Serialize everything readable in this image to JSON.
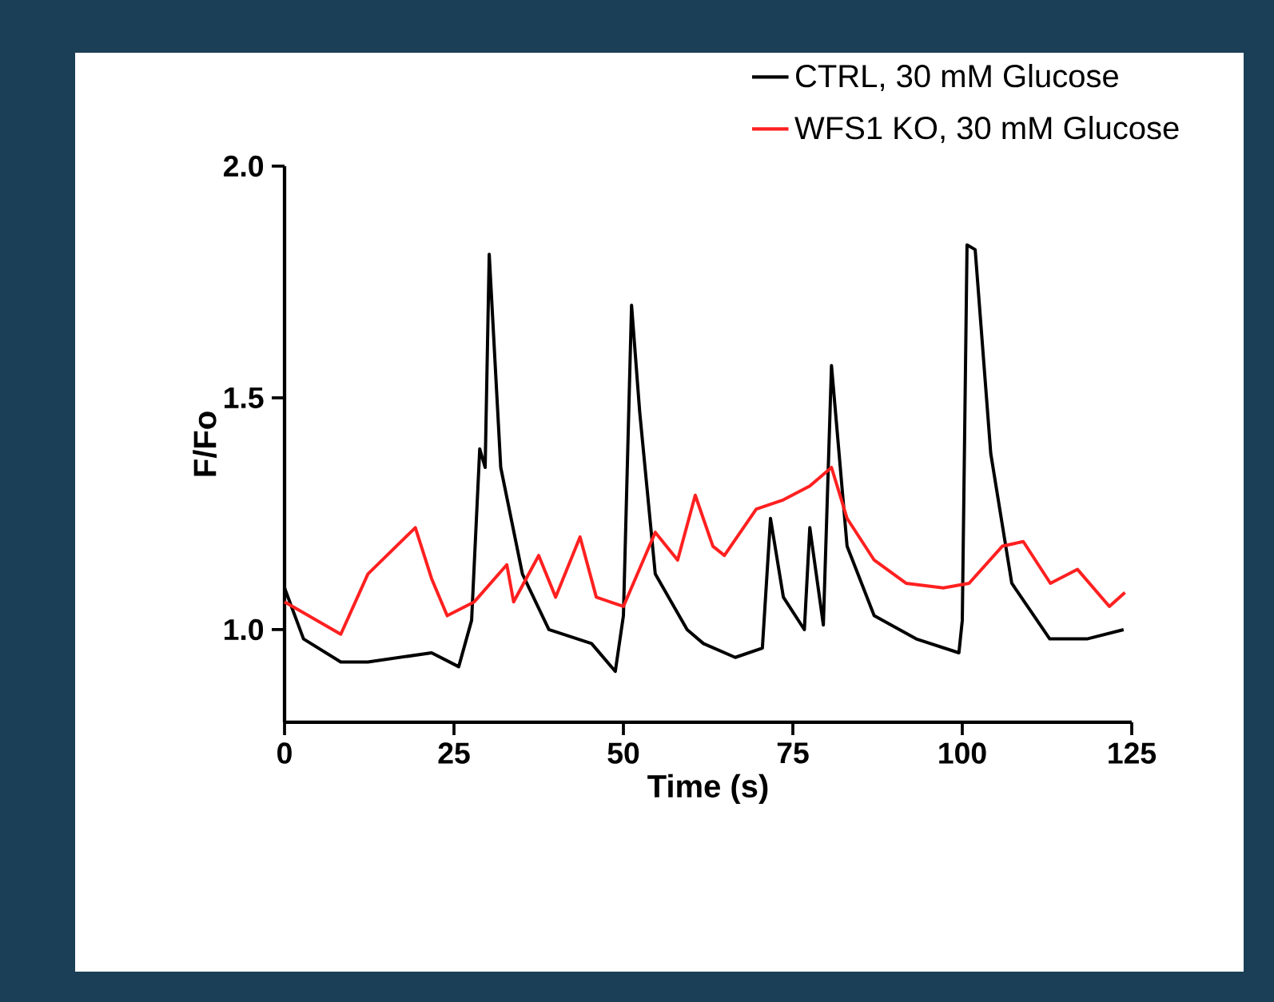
{
  "chart_data": {
    "type": "line",
    "xlabel": "Time (s)",
    "ylabel": "F/Fo",
    "xlim": [
      0,
      125
    ],
    "xticks": [
      0,
      25,
      50,
      75,
      100,
      125
    ],
    "ylim": [
      0.8,
      2.0
    ],
    "yticks": [
      {
        "value": 1.0,
        "label": "1.0"
      },
      {
        "value": 1.5,
        "label": "1.5"
      },
      {
        "value": 2.0,
        "label": "2.0"
      }
    ],
    "legend": "top right",
    "grid": false,
    "marker": "none",
    "line_style": "solid",
    "series": [
      {
        "name": "WFS1 KO, 30 mM Glucose",
        "color": "#ff2020",
        "x": [
          0,
          8.3,
          12.3,
          19.3,
          21.7,
          24,
          28,
          32.8,
          33.8,
          37.5,
          40,
          43.6,
          46,
          50,
          54.7,
          58,
          60.6,
          63.2,
          64.9,
          69.6,
          73.6,
          77.5,
          80.7,
          83,
          87,
          91.7,
          97.2,
          101,
          105.9,
          109,
          113,
          117,
          121.7,
          124
        ],
        "values": [
          1.06,
          0.99,
          1.12,
          1.22,
          1.11,
          1.03,
          1.06,
          1.14,
          1.06,
          1.16,
          1.07,
          1.2,
          1.07,
          1.05,
          1.21,
          1.15,
          1.29,
          1.18,
          1.16,
          1.26,
          1.28,
          1.31,
          1.35,
          1.24,
          1.15,
          1.1,
          1.09,
          1.1,
          1.18,
          1.19,
          1.1,
          1.13,
          1.05,
          1.08
        ]
      },
      {
        "name": "CTRL, 30 mM Glucose",
        "color": "#000000",
        "x": [
          0,
          2.8,
          8.3,
          12.3,
          21.7,
          25.7,
          27.6,
          28.8,
          29.6,
          30.2,
          31.9,
          35.1,
          39,
          45.3,
          48.8,
          50,
          51.2,
          52.4,
          54.7,
          59.4,
          61.8,
          66.5,
          70.5,
          71.7,
          73.6,
          76.7,
          77.5,
          79.5,
          80.7,
          83,
          87,
          93.2,
          99.5,
          100,
          100.7,
          101.9,
          104.2,
          107.3,
          112.9,
          118.4,
          123.8
        ],
        "values": [
          1.09,
          0.98,
          0.93,
          0.93,
          0.95,
          0.92,
          1.02,
          1.39,
          1.35,
          1.81,
          1.35,
          1.12,
          1.0,
          0.97,
          0.91,
          1.03,
          1.7,
          1.47,
          1.12,
          1.0,
          0.97,
          0.94,
          0.96,
          1.24,
          1.07,
          1.0,
          1.22,
          1.01,
          1.57,
          1.18,
          1.03,
          0.98,
          0.95,
          1.02,
          1.83,
          1.82,
          1.38,
          1.1,
          0.98,
          0.98,
          1.0
        ]
      }
    ]
  }
}
